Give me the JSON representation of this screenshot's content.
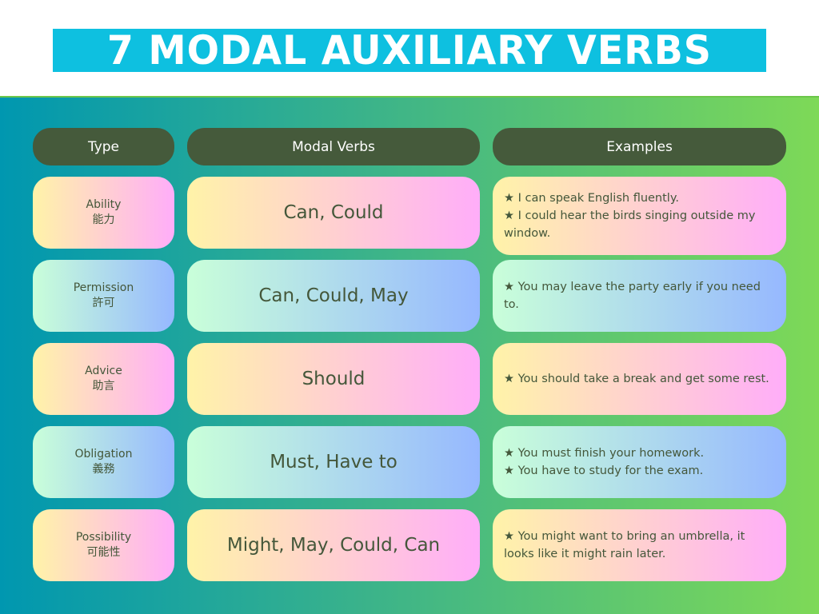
{
  "title": "7 MODAL AUXILIARY VERBS",
  "colors": {
    "banner": "#0ec0e0",
    "header_pill": "#455a3b",
    "text": "#44573a",
    "bg_left": "#0097b0",
    "bg_right": "#7ed957"
  },
  "headers": [
    "Type",
    "Modal Verbs",
    "Examples"
  ],
  "rows": [
    {
      "type": "Ability",
      "type_zh": "能力",
      "verbs": "Can, Could",
      "examples": [
        "★ I can speak English fluently.",
        "★ I could hear the birds singing outside my window."
      ],
      "theme": "warm"
    },
    {
      "type": "Permission",
      "type_zh": "許可",
      "verbs": "Can, Could, May",
      "examples": [
        "★ You may leave the party early if you need to."
      ],
      "theme": "cool"
    },
    {
      "type": "Advice",
      "type_zh": "助言",
      "verbs": "Should",
      "examples": [
        "★  You should take a break and get some rest."
      ],
      "theme": "warm"
    },
    {
      "type": "Obligation",
      "type_zh": "義務",
      "verbs": "Must, Have to",
      "examples": [
        "★ You must finish your homework.",
        "★ You have to study for the exam."
      ],
      "theme": "cool"
    },
    {
      "type": "Possibility",
      "type_zh": "可能性",
      "verbs": "Might, May, Could, Can",
      "examples": [
        "★ You might want to bring an umbrella, it looks like it might rain later."
      ],
      "theme": "warm"
    }
  ]
}
